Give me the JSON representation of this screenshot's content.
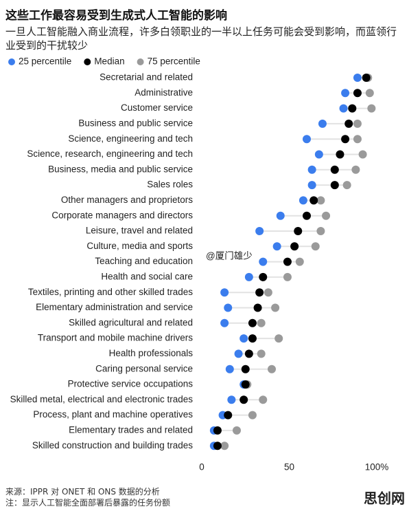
{
  "chart_data": {
    "type": "dot",
    "title": "这些工作最容易受到生成式人工智能的影响",
    "subtitle": "一旦人工智能融入商业流程，许多白领职业的一半以上任务可能会受到影响，而蓝领行业受到的干扰较少",
    "categories": [
      "Secretarial and related",
      "Administrative",
      "Customer service",
      "Business and public service",
      "Science, engineering and tech",
      "Science, research, engineering and tech",
      "Business, media and public service",
      "Sales roles",
      "Other managers and proprietors",
      "Corporate managers and directors",
      "Leisure, travel and related",
      "Culture, media and sports",
      "Teaching and education",
      "Health and social care",
      "Textiles, printing and other skilled trades",
      "Elementary administration and service",
      "Skilled agricultural and related",
      "Transport and mobile machine drivers",
      "Health professionals",
      "Caring personal service",
      "Protective service occupations",
      "Skilled metal, electrical and electronic trades",
      "Process, plant and machine operatives",
      "Elementary trades and related",
      "Skilled construction and building trades"
    ],
    "series": [
      {
        "name": "25 percentile",
        "color": "#3b7ded",
        "values": [
          89,
          82,
          81,
          69,
          60,
          67,
          63,
          63,
          58,
          45,
          33,
          43,
          35,
          27,
          13,
          15,
          13,
          24,
          21,
          16,
          24,
          17,
          12,
          7,
          7
        ]
      },
      {
        "name": "Median",
        "color": "#000000",
        "values": [
          94,
          89,
          86,
          84,
          82,
          79,
          76,
          76,
          64,
          60,
          55,
          53,
          49,
          35,
          33,
          32,
          29,
          29,
          27,
          25,
          25,
          24,
          15,
          9,
          9
        ]
      },
      {
        "name": "75 percentile",
        "color": "#9a9a9a",
        "values": [
          95,
          96,
          97,
          89,
          89,
          92,
          88,
          83,
          68,
          71,
          68,
          65,
          56,
          49,
          38,
          42,
          34,
          44,
          34,
          40,
          26,
          35,
          29,
          20,
          13
        ]
      }
    ],
    "xlim": [
      0,
      100
    ],
    "xticks": [
      0,
      50,
      {
        "value": 100,
        "label": "100%"
      }
    ],
    "source": "来源：IPPR 对 ONET 和 ONS 数据的分析",
    "note": "注：显示人工智能全面部署后暴露的任务份额",
    "watermarks": [
      "@厦门雄少",
      "思创网"
    ]
  }
}
